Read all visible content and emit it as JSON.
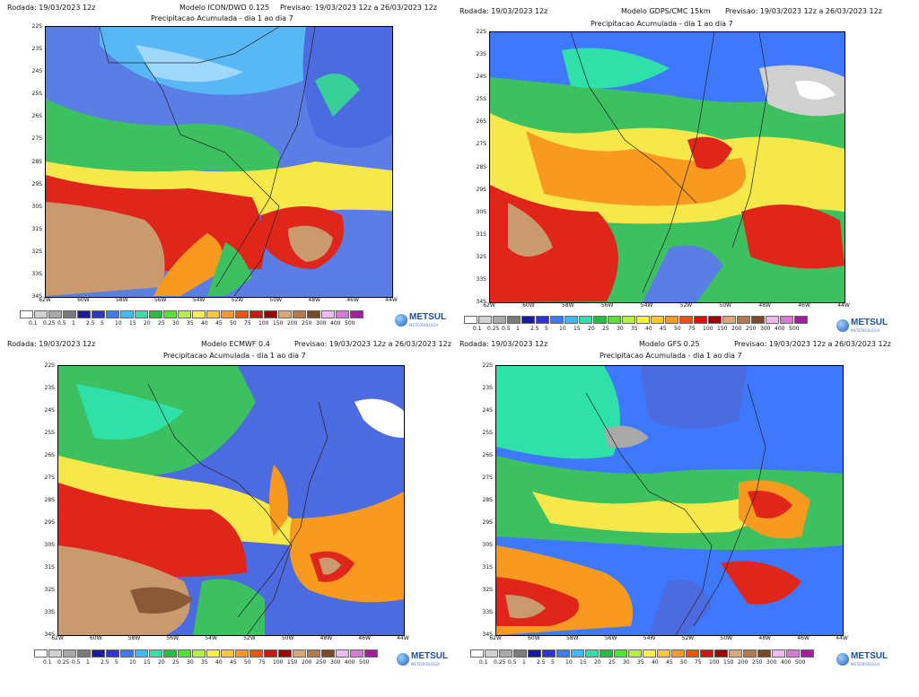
{
  "latitudes": [
    "22S",
    "23S",
    "24S",
    "25S",
    "26S",
    "27S",
    "28S",
    "29S",
    "30S",
    "31S",
    "32S",
    "33S",
    "34S"
  ],
  "longitudes": [
    "62W",
    "60W",
    "58W",
    "56W",
    "54W",
    "52W",
    "50W",
    "48W",
    "46W",
    "44W"
  ],
  "legend": {
    "levels": [
      "0.1",
      "0.25",
      "0.5",
      "1",
      "2.5",
      "5",
      "10",
      "15",
      "20",
      "25",
      "30",
      "35",
      "40",
      "45",
      "50",
      "75",
      "100",
      "150",
      "200",
      "250",
      "300",
      "400",
      "500"
    ],
    "colors": [
      "#ffffff",
      "#d0d0d0",
      "#a9a9a9",
      "#7a7a7a",
      "#1919a6",
      "#3131d8",
      "#3d78ff",
      "#40b8ff",
      "#2fe0a8",
      "#22c040",
      "#56e030",
      "#b8f040",
      "#f8f040",
      "#f8c830",
      "#f89a20",
      "#f05010",
      "#d81010",
      "#a00000",
      "#d8a878",
      "#b47a4e",
      "#7a4a26",
      "#f0b8f0",
      "#d47ad4",
      "#a01ea0"
    ],
    "brand": "METSUL",
    "brand_sub": "METEOROLOGIA"
  },
  "panels": [
    {
      "rodada": "Rodada: 19/03/2023 12z",
      "modelo": "Modelo ICON/DWD 0.125",
      "previsao": "Previsao: 19/03/2023 12z a 26/03/2023 12z",
      "subtitle": "Precipitacao Acumulada - dia 1 ao dia 7"
    },
    {
      "rodada": "Rodada: 19/03/2023 12z",
      "modelo": "Modelo GDPS/CMC 15km",
      "previsao": "Previsao: 19/03/2023 12z a 26/03/2023 12z",
      "subtitle": "Precipitacao Acumulada - dia 1 ao dia 7"
    },
    {
      "rodada": "Rodada: 19/03/2023 12z",
      "modelo": "Modelo ECMWF 0.4",
      "previsao": "Previsao: 19/03/2023 12z a 26/03/2023 12z",
      "subtitle": "Precipitacao Acumulada - dia 1 ao dia 7"
    },
    {
      "rodada": "Rodada: 19/03/2023 12z",
      "modelo": "Modelo GFS 0.25",
      "previsao": "Previsao: 19/03/2023 12z a 26/03/2023 12z",
      "subtitle": "Precipitacao Acumulada - dia 1 ao dia 7"
    }
  ]
}
